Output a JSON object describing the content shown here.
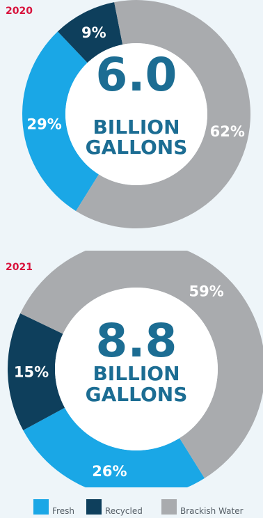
{
  "chart_data": [
    {
      "type": "donut",
      "year": "2020",
      "total_value": "6.0",
      "total_unit_line1": "BILLION",
      "total_unit_line2": "GALLONS",
      "slices": [
        {
          "key": "fresh",
          "label": "29%",
          "value": 29
        },
        {
          "key": "recycled",
          "label": "9%",
          "value": 9
        },
        {
          "key": "brackish",
          "label": "62%",
          "value": 62
        }
      ]
    },
    {
      "type": "donut",
      "year": "2021",
      "total_value": "8.8",
      "total_unit_line1": "BILLION",
      "total_unit_line2": "GALLONS",
      "slices": [
        {
          "key": "fresh",
          "label": "26%",
          "value": 26
        },
        {
          "key": "recycled",
          "label": "15%",
          "value": 15
        },
        {
          "key": "brackish",
          "label": "59%",
          "value": 59
        }
      ]
    }
  ],
  "legend": [
    {
      "key": "fresh",
      "label": "Fresh"
    },
    {
      "key": "recycled",
      "label": "Recycled"
    },
    {
      "key": "brackish",
      "label": "Brackish Water"
    }
  ],
  "colors": {
    "fresh": "#1aa7e6",
    "recycled": "#0e3f5c",
    "brackish": "#a9abae",
    "center_text": "#1c6d93",
    "year": "#d8123c",
    "slice_text": "#ffffff"
  }
}
